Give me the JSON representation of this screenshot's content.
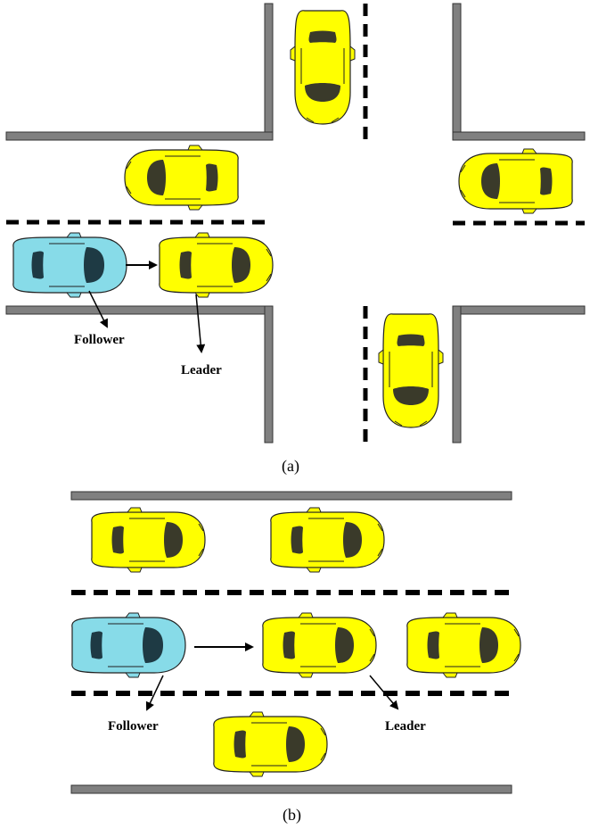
{
  "panel_a": {
    "caption": "(a)",
    "follower_label": "Follower",
    "leader_label": "Leader"
  },
  "panel_b": {
    "caption": "(b)",
    "follower_label": "Follower",
    "leader_label": "Leader"
  },
  "colors": {
    "road_edge": "#808080",
    "lane_marking": "#000000",
    "car_yellow": "#ffff00",
    "car_blue": "#87dbe8",
    "window_dark": "#3a3a2a",
    "window_blue_dark": "#1e3a44"
  },
  "icons": [
    "yellow-car-icon",
    "blue-car-icon",
    "arrow-icon"
  ]
}
